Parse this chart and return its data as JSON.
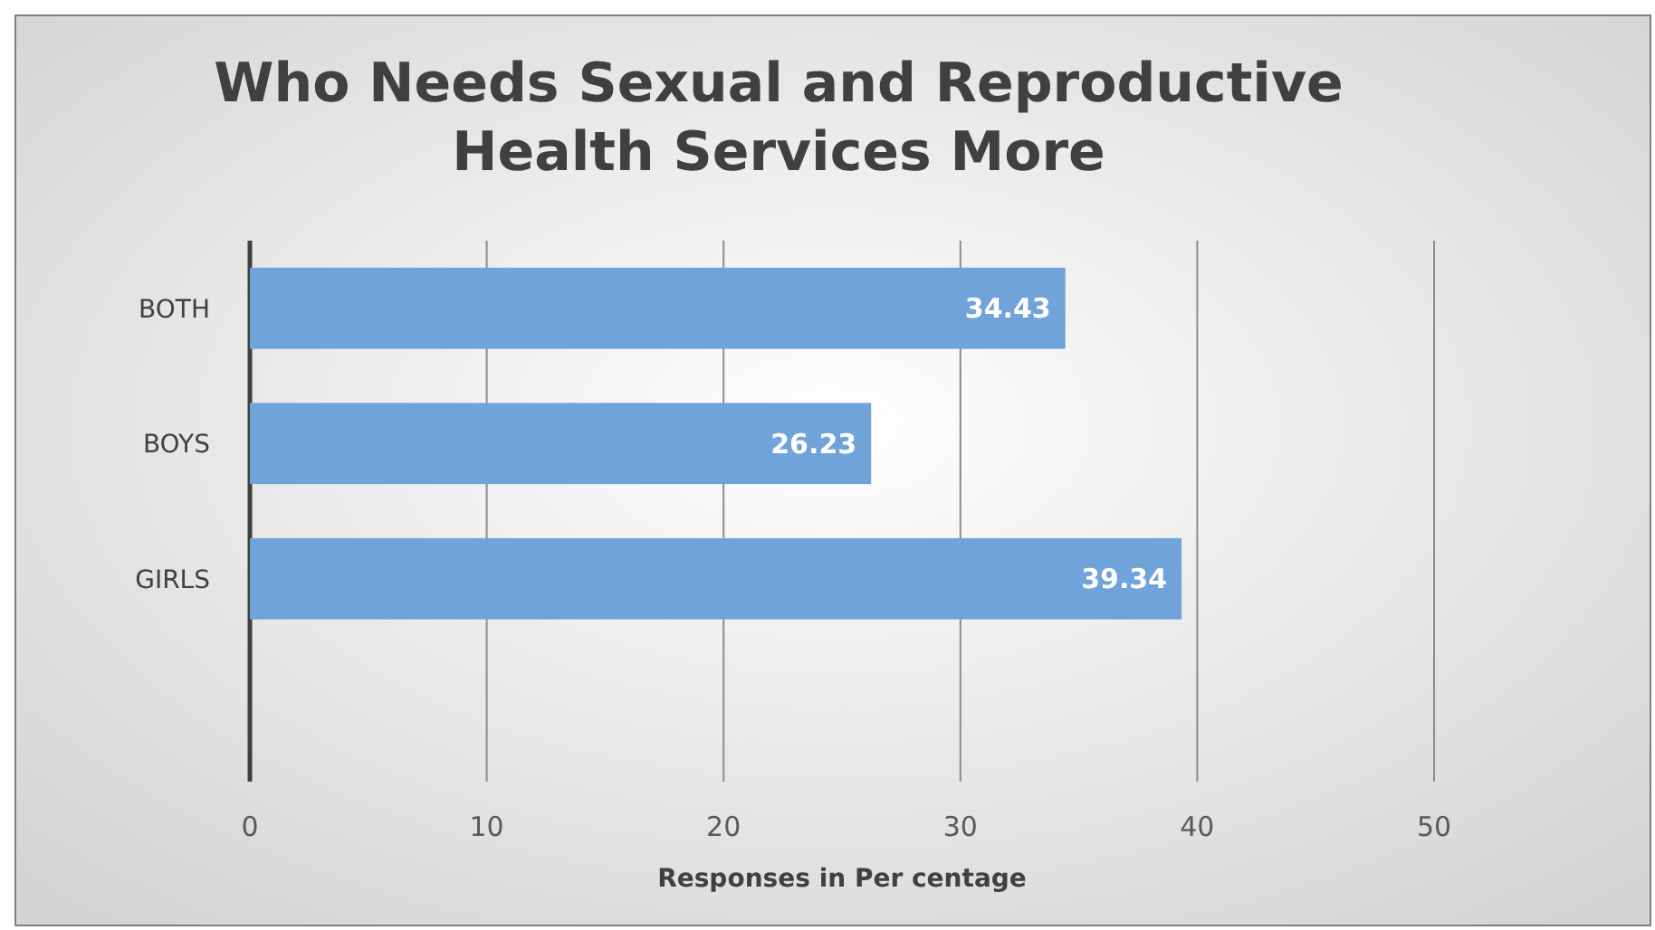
{
  "chart_data": {
    "type": "bar",
    "orientation": "horizontal",
    "title": "Who Needs Sexual and Reproductive Health Services More",
    "xlabel": "Responses in Per centage",
    "categories": [
      "BOTH",
      "BOYS",
      "GIRLS",
      null
    ],
    "values": [
      34.43,
      26.23,
      39.34,
      null
    ],
    "color": "#6fa3d9",
    "xlim": [
      0,
      50
    ],
    "xticks": [
      0,
      10,
      20,
      30,
      40,
      50
    ],
    "grid": "x",
    "data_labels": true
  }
}
